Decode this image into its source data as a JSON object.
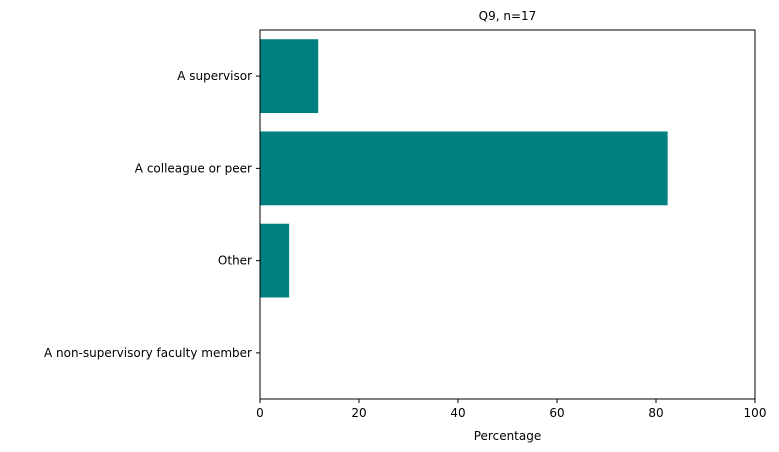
{
  "chart_data": {
    "type": "bar",
    "orientation": "horizontal",
    "title": "Q9, n=17",
    "xlabel": "Percentage",
    "ylabel": "",
    "xlim": [
      0,
      100
    ],
    "xticks": [
      "0",
      "20",
      "40",
      "60",
      "80",
      "100"
    ],
    "categories": [
      "A supervisor",
      "A colleague or peer",
      "Other",
      "A non-supervisory faculty member"
    ],
    "values": [
      11.76,
      82.35,
      5.88,
      0
    ],
    "bar_color": "#008080",
    "grid": false,
    "legend": "none"
  }
}
